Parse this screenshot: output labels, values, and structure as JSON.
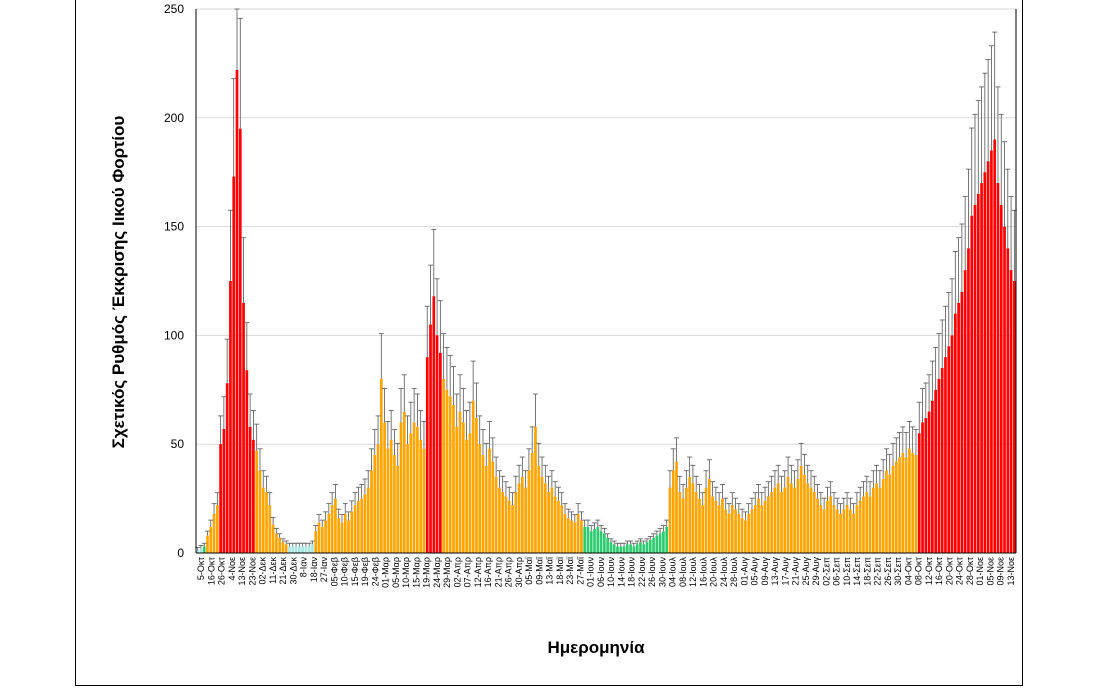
{
  "chart_data": {
    "type": "bar",
    "title": "",
    "xlabel": "Ημερομηνία",
    "ylabel": "Σχετικός Ρυθμός Έκκρισης Ιικού Φορτίου",
    "ylim": [
      0,
      250
    ],
    "yticks": [
      0,
      50,
      100,
      150,
      200,
      250
    ],
    "grid": true,
    "error_bars": true,
    "x_tick_labels": [
      "5-Οκτ",
      "16-Οκτ",
      "26-Οκτ",
      "4-Νοε",
      "13-Νοε",
      "23-Νοε",
      "02-Δεκ",
      "11-Δεκ",
      "21-Δεκ",
      "30-Δεκ",
      "8-Ιαν",
      "18-Ιαν",
      "27-Ιαν",
      "05-Φεβ",
      "10-Φεβ",
      "15-Φεβ",
      "19-Φεβ",
      "24-Φεβ",
      "01-Μαρ",
      "05-Μαρ",
      "10-Μαρ",
      "15-Μαρ",
      "19-Μαρ",
      "24-Μαρ",
      "29-Μαρ",
      "02-Απρ",
      "07-Απρ",
      "12-Απρ",
      "16-Απρ",
      "21-Απρ",
      "26-Απρ",
      "30-Απρ",
      "05-Μαϊ",
      "09-Μαϊ",
      "13-Μαϊ",
      "18-Μαϊ",
      "23-Μαϊ",
      "27-Μαϊ",
      "01-Ιουν",
      "06-Ιουν",
      "10-Ιουν",
      "14-Ιουν",
      "18-Ιουν",
      "22-Ιουν",
      "26-Ιουν",
      "30-Ιουν",
      "04-Ιουλ",
      "08-Ιουλ",
      "12-Ιουλ",
      "16-Ιουλ",
      "20-Ιουλ",
      "24-Ιουλ",
      "28-Ιουλ",
      "01-Αυγ",
      "05-Αυγ",
      "09-Αυγ",
      "13-Αυγ",
      "17-Αυγ",
      "21-Αυγ",
      "25-Αυγ",
      "29-Αυγ",
      "02-Σεπ",
      "06-Σεπ",
      "10-Σεπ",
      "14-Σεπ",
      "18-Σεπ",
      "22-Σεπ",
      "26-Σεπ",
      "30-Σεπ",
      "04-Οκτ",
      "08-Οκτ",
      "12-Οκτ",
      "16-Οκτ",
      "20-Οκτ",
      "24-Οκτ",
      "28-Οκτ",
      "01-Νοε",
      "05-Νοε",
      "09-Νοε",
      "13-Νοε"
    ],
    "colors": {
      "red": "#ff0000",
      "orange": "#ffa500",
      "green": "#2ecc71",
      "teal": "#a8e6e0",
      "error": "#555555",
      "grid": "#d9d9d9"
    },
    "series": [
      {
        "name": "level",
        "values": [
          {
            "v": 1,
            "c": "teal"
          },
          {
            "v": 2,
            "c": "teal"
          },
          {
            "v": 3,
            "c": "green"
          },
          {
            "v": 8,
            "c": "orange"
          },
          {
            "v": 12,
            "c": "orange"
          },
          {
            "v": 18,
            "c": "orange"
          },
          {
            "v": 22,
            "c": "orange"
          },
          {
            "v": 50,
            "c": "red"
          },
          {
            "v": 57,
            "c": "red"
          },
          {
            "v": 78,
            "c": "red"
          },
          {
            "v": 125,
            "c": "red"
          },
          {
            "v": 173,
            "c": "red"
          },
          {
            "v": 222,
            "c": "red"
          },
          {
            "v": 195,
            "c": "red"
          },
          {
            "v": 115,
            "c": "red"
          },
          {
            "v": 84,
            "c": "red"
          },
          {
            "v": 58,
            "c": "red"
          },
          {
            "v": 52,
            "c": "red"
          },
          {
            "v": 47,
            "c": "orange"
          },
          {
            "v": 38,
            "c": "orange"
          },
          {
            "v": 30,
            "c": "orange"
          },
          {
            "v": 28,
            "c": "orange"
          },
          {
            "v": 22,
            "c": "orange"
          },
          {
            "v": 13,
            "c": "orange"
          },
          {
            "v": 9,
            "c": "orange"
          },
          {
            "v": 7,
            "c": "orange"
          },
          {
            "v": 5,
            "c": "orange"
          },
          {
            "v": 4,
            "c": "orange"
          },
          {
            "v": 3,
            "c": "teal"
          },
          {
            "v": 3,
            "c": "teal"
          },
          {
            "v": 3,
            "c": "teal"
          },
          {
            "v": 3,
            "c": "teal"
          },
          {
            "v": 3,
            "c": "teal"
          },
          {
            "v": 3,
            "c": "teal"
          },
          {
            "v": 3,
            "c": "teal"
          },
          {
            "v": 4,
            "c": "teal"
          },
          {
            "v": 10,
            "c": "orange"
          },
          {
            "v": 14,
            "c": "orange"
          },
          {
            "v": 12,
            "c": "orange"
          },
          {
            "v": 15,
            "c": "orange"
          },
          {
            "v": 18,
            "c": "orange"
          },
          {
            "v": 22,
            "c": "orange"
          },
          {
            "v": 25,
            "c": "orange"
          },
          {
            "v": 16,
            "c": "orange"
          },
          {
            "v": 14,
            "c": "orange"
          },
          {
            "v": 18,
            "c": "orange"
          },
          {
            "v": 15,
            "c": "orange"
          },
          {
            "v": 19,
            "c": "orange"
          },
          {
            "v": 22,
            "c": "orange"
          },
          {
            "v": 24,
            "c": "orange"
          },
          {
            "v": 25,
            "c": "orange"
          },
          {
            "v": 27,
            "c": "orange"
          },
          {
            "v": 30,
            "c": "orange"
          },
          {
            "v": 38,
            "c": "orange"
          },
          {
            "v": 45,
            "c": "orange"
          },
          {
            "v": 50,
            "c": "orange"
          },
          {
            "v": 80,
            "c": "orange"
          },
          {
            "v": 60,
            "c": "orange"
          },
          {
            "v": 48,
            "c": "orange"
          },
          {
            "v": 52,
            "c": "orange"
          },
          {
            "v": 45,
            "c": "orange"
          },
          {
            "v": 40,
            "c": "orange"
          },
          {
            "v": 60,
            "c": "orange"
          },
          {
            "v": 65,
            "c": "orange"
          },
          {
            "v": 50,
            "c": "orange"
          },
          {
            "v": 55,
            "c": "orange"
          },
          {
            "v": 60,
            "c": "orange"
          },
          {
            "v": 58,
            "c": "orange"
          },
          {
            "v": 52,
            "c": "orange"
          },
          {
            "v": 48,
            "c": "orange"
          },
          {
            "v": 90,
            "c": "red"
          },
          {
            "v": 105,
            "c": "red"
          },
          {
            "v": 118,
            "c": "red"
          },
          {
            "v": 100,
            "c": "red"
          },
          {
            "v": 92,
            "c": "red"
          },
          {
            "v": 80,
            "c": "orange"
          },
          {
            "v": 75,
            "c": "orange"
          },
          {
            "v": 72,
            "c": "orange"
          },
          {
            "v": 68,
            "c": "orange"
          },
          {
            "v": 58,
            "c": "orange"
          },
          {
            "v": 65,
            "c": "orange"
          },
          {
            "v": 60,
            "c": "orange"
          },
          {
            "v": 52,
            "c": "orange"
          },
          {
            "v": 55,
            "c": "orange"
          },
          {
            "v": 70,
            "c": "orange"
          },
          {
            "v": 62,
            "c": "orange"
          },
          {
            "v": 50,
            "c": "orange"
          },
          {
            "v": 45,
            "c": "orange"
          },
          {
            "v": 40,
            "c": "orange"
          },
          {
            "v": 48,
            "c": "orange"
          },
          {
            "v": 42,
            "c": "orange"
          },
          {
            "v": 35,
            "c": "orange"
          },
          {
            "v": 30,
            "c": "orange"
          },
          {
            "v": 28,
            "c": "orange"
          },
          {
            "v": 26,
            "c": "orange"
          },
          {
            "v": 24,
            "c": "orange"
          },
          {
            "v": 22,
            "c": "orange"
          },
          {
            "v": 28,
            "c": "orange"
          },
          {
            "v": 32,
            "c": "orange"
          },
          {
            "v": 35,
            "c": "orange"
          },
          {
            "v": 30,
            "c": "orange"
          },
          {
            "v": 38,
            "c": "orange"
          },
          {
            "v": 46,
            "c": "orange"
          },
          {
            "v": 58,
            "c": "orange"
          },
          {
            "v": 40,
            "c": "orange"
          },
          {
            "v": 35,
            "c": "orange"
          },
          {
            "v": 32,
            "c": "orange"
          },
          {
            "v": 28,
            "c": "orange"
          },
          {
            "v": 30,
            "c": "orange"
          },
          {
            "v": 26,
            "c": "orange"
          },
          {
            "v": 24,
            "c": "orange"
          },
          {
            "v": 22,
            "c": "orange"
          },
          {
            "v": 18,
            "c": "orange"
          },
          {
            "v": 16,
            "c": "orange"
          },
          {
            "v": 15,
            "c": "orange"
          },
          {
            "v": 14,
            "c": "orange"
          },
          {
            "v": 18,
            "c": "orange"
          },
          {
            "v": 15,
            "c": "orange"
          },
          {
            "v": 12,
            "c": "green"
          },
          {
            "v": 12,
            "c": "green"
          },
          {
            "v": 10,
            "c": "green"
          },
          {
            "v": 11,
            "c": "green"
          },
          {
            "v": 12,
            "c": "green"
          },
          {
            "v": 10,
            "c": "green"
          },
          {
            "v": 9,
            "c": "green"
          },
          {
            "v": 7,
            "c": "green"
          },
          {
            "v": 5,
            "c": "green"
          },
          {
            "v": 4,
            "c": "green"
          },
          {
            "v": 3,
            "c": "green"
          },
          {
            "v": 3,
            "c": "green"
          },
          {
            "v": 3,
            "c": "green"
          },
          {
            "v": 4,
            "c": "green"
          },
          {
            "v": 4,
            "c": "green"
          },
          {
            "v": 3,
            "c": "green"
          },
          {
            "v": 4,
            "c": "green"
          },
          {
            "v": 5,
            "c": "green"
          },
          {
            "v": 4,
            "c": "green"
          },
          {
            "v": 5,
            "c": "green"
          },
          {
            "v": 6,
            "c": "green"
          },
          {
            "v": 7,
            "c": "green"
          },
          {
            "v": 8,
            "c": "green"
          },
          {
            "v": 9,
            "c": "green"
          },
          {
            "v": 10,
            "c": "green"
          },
          {
            "v": 12,
            "c": "green"
          },
          {
            "v": 30,
            "c": "orange"
          },
          {
            "v": 38,
            "c": "orange"
          },
          {
            "v": 42,
            "c": "orange"
          },
          {
            "v": 28,
            "c": "orange"
          },
          {
            "v": 25,
            "c": "orange"
          },
          {
            "v": 30,
            "c": "orange"
          },
          {
            "v": 35,
            "c": "orange"
          },
          {
            "v": 32,
            "c": "orange"
          },
          {
            "v": 28,
            "c": "orange"
          },
          {
            "v": 25,
            "c": "orange"
          },
          {
            "v": 22,
            "c": "orange"
          },
          {
            "v": 30,
            "c": "orange"
          },
          {
            "v": 34,
            "c": "orange"
          },
          {
            "v": 26,
            "c": "orange"
          },
          {
            "v": 24,
            "c": "orange"
          },
          {
            "v": 22,
            "c": "orange"
          },
          {
            "v": 25,
            "c": "orange"
          },
          {
            "v": 20,
            "c": "orange"
          },
          {
            "v": 18,
            "c": "orange"
          },
          {
            "v": 22,
            "c": "orange"
          },
          {
            "v": 20,
            "c": "orange"
          },
          {
            "v": 18,
            "c": "orange"
          },
          {
            "v": 16,
            "c": "orange"
          },
          {
            "v": 15,
            "c": "orange"
          },
          {
            "v": 18,
            "c": "orange"
          },
          {
            "v": 20,
            "c": "orange"
          },
          {
            "v": 22,
            "c": "orange"
          },
          {
            "v": 25,
            "c": "orange"
          },
          {
            "v": 22,
            "c": "orange"
          },
          {
            "v": 24,
            "c": "orange"
          },
          {
            "v": 26,
            "c": "orange"
          },
          {
            "v": 28,
            "c": "orange"
          },
          {
            "v": 30,
            "c": "orange"
          },
          {
            "v": 32,
            "c": "orange"
          },
          {
            "v": 28,
            "c": "orange"
          },
          {
            "v": 30,
            "c": "orange"
          },
          {
            "v": 35,
            "c": "orange"
          },
          {
            "v": 32,
            "c": "orange"
          },
          {
            "v": 30,
            "c": "orange"
          },
          {
            "v": 34,
            "c": "orange"
          },
          {
            "v": 40,
            "c": "orange"
          },
          {
            "v": 36,
            "c": "orange"
          },
          {
            "v": 32,
            "c": "orange"
          },
          {
            "v": 30,
            "c": "orange"
          },
          {
            "v": 28,
            "c": "orange"
          },
          {
            "v": 25,
            "c": "orange"
          },
          {
            "v": 22,
            "c": "orange"
          },
          {
            "v": 20,
            "c": "orange"
          },
          {
            "v": 24,
            "c": "orange"
          },
          {
            "v": 26,
            "c": "orange"
          },
          {
            "v": 22,
            "c": "orange"
          },
          {
            "v": 20,
            "c": "orange"
          },
          {
            "v": 18,
            "c": "orange"
          },
          {
            "v": 20,
            "c": "orange"
          },
          {
            "v": 22,
            "c": "orange"
          },
          {
            "v": 20,
            "c": "orange"
          },
          {
            "v": 18,
            "c": "orange"
          },
          {
            "v": 22,
            "c": "orange"
          },
          {
            "v": 24,
            "c": "orange"
          },
          {
            "v": 26,
            "c": "orange"
          },
          {
            "v": 28,
            "c": "orange"
          },
          {
            "v": 26,
            "c": "orange"
          },
          {
            "v": 30,
            "c": "orange"
          },
          {
            "v": 32,
            "c": "orange"
          },
          {
            "v": 30,
            "c": "orange"
          },
          {
            "v": 34,
            "c": "orange"
          },
          {
            "v": 38,
            "c": "orange"
          },
          {
            "v": 36,
            "c": "orange"
          },
          {
            "v": 40,
            "c": "orange"
          },
          {
            "v": 42,
            "c": "orange"
          },
          {
            "v": 44,
            "c": "orange"
          },
          {
            "v": 46,
            "c": "orange"
          },
          {
            "v": 44,
            "c": "orange"
          },
          {
            "v": 48,
            "c": "orange"
          },
          {
            "v": 46,
            "c": "orange"
          },
          {
            "v": 45,
            "c": "orange"
          },
          {
            "v": 55,
            "c": "red"
          },
          {
            "v": 60,
            "c": "red"
          },
          {
            "v": 62,
            "c": "red"
          },
          {
            "v": 65,
            "c": "red"
          },
          {
            "v": 70,
            "c": "red"
          },
          {
            "v": 75,
            "c": "red"
          },
          {
            "v": 80,
            "c": "red"
          },
          {
            "v": 85,
            "c": "red"
          },
          {
            "v": 90,
            "c": "red"
          },
          {
            "v": 95,
            "c": "red"
          },
          {
            "v": 100,
            "c": "red"
          },
          {
            "v": 110,
            "c": "red"
          },
          {
            "v": 115,
            "c": "red"
          },
          {
            "v": 120,
            "c": "red"
          },
          {
            "v": 130,
            "c": "red"
          },
          {
            "v": 140,
            "c": "red"
          },
          {
            "v": 155,
            "c": "red"
          },
          {
            "v": 160,
            "c": "red"
          },
          {
            "v": 165,
            "c": "red"
          },
          {
            "v": 170,
            "c": "red"
          },
          {
            "v": 175,
            "c": "red"
          },
          {
            "v": 180,
            "c": "red"
          },
          {
            "v": 185,
            "c": "red"
          },
          {
            "v": 190,
            "c": "red"
          },
          {
            "v": 170,
            "c": "red"
          },
          {
            "v": 160,
            "c": "red"
          },
          {
            "v": 150,
            "c": "red"
          },
          {
            "v": 140,
            "c": "red"
          },
          {
            "v": 130,
            "c": "red"
          },
          {
            "v": 125,
            "c": "red"
          }
        ]
      }
    ]
  }
}
